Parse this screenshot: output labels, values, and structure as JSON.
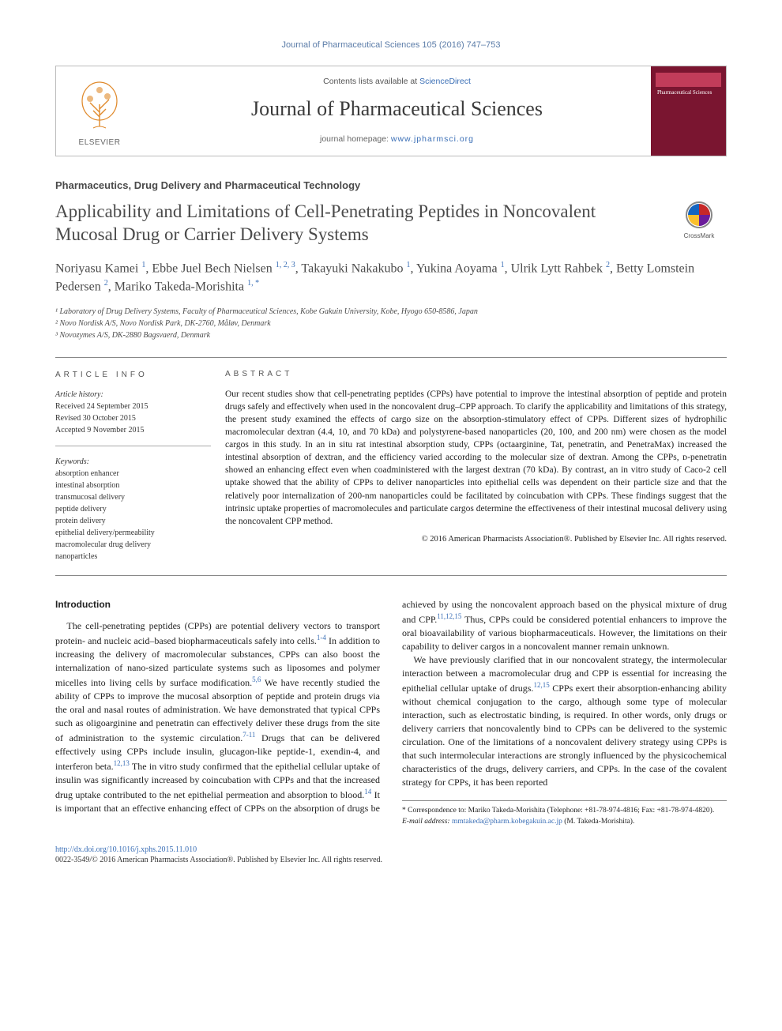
{
  "running_head": "Journal of Pharmaceutical Sciences 105 (2016) 747–753",
  "header": {
    "contents_prefix": "Contents lists available at ",
    "contents_link": "ScienceDirect",
    "journal_title": "Journal of Pharmaceutical Sciences",
    "homepage_prefix": "journal homepage: ",
    "homepage_url": "www.jpharmsci.org",
    "publisher_label": "ELSEVIER",
    "cover_text": "Pharmaceutical Sciences"
  },
  "section_label": "Pharmaceutics, Drug Delivery and Pharmaceutical Technology",
  "title": "Applicability and Limitations of Cell-Penetrating Peptides in Noncovalent Mucosal Drug or Carrier Delivery Systems",
  "crossmark_label": "CrossMark",
  "authors_html": "Noriyasu Kamei <span class='sup'>1</span>, Ebbe Juel Bech Nielsen <span class='sup'>1, 2, 3</span>, Takayuki Nakakubo <span class='sup'>1</span>, Yukina Aoyama <span class='sup'>1</span>, Ulrik Lytt Rahbek <span class='sup'>2</span>, Betty Lomstein Pedersen <span class='sup'>2</span>, Mariko Takeda-Morishita <span class='sup'>1, *</span>",
  "affiliations": {
    "a1": "¹ Laboratory of Drug Delivery Systems, Faculty of Pharmaceutical Sciences, Kobe Gakuin University, Kobe, Hyogo 650-8586, Japan",
    "a2": "² Novo Nordisk A/S, Novo Nordisk Park, DK-2760, Måløv, Denmark",
    "a3": "³ Novozymes A/S, DK-2880 Bagsvaerd, Denmark"
  },
  "info": {
    "head": "ARTICLE INFO",
    "history_label": "Article history:",
    "received": "Received 24 September 2015",
    "revised": "Revised 30 October 2015",
    "accepted": "Accepted 9 November 2015",
    "keywords_label": "Keywords:",
    "kw1": "absorption enhancer",
    "kw2": "intestinal absorption",
    "kw3": "transmucosal delivery",
    "kw4": "peptide delivery",
    "kw5": "protein delivery",
    "kw6": "epithelial delivery/permeability",
    "kw7": "macromolecular drug delivery",
    "kw8": "nanoparticles"
  },
  "abstract": {
    "head": "ABSTRACT",
    "text": "Our recent studies show that cell-penetrating peptides (CPPs) have potential to improve the intestinal absorption of peptide and protein drugs safely and effectively when used in the noncovalent drug–CPP approach. To clarify the applicability and limitations of this strategy, the present study examined the effects of cargo size on the absorption-stimulatory effect of CPPs. Different sizes of hydrophilic macromolecular dextran (4.4, 10, and 70 kDa) and polystyrene-based nanoparticles (20, 100, and 200 nm) were chosen as the model cargos in this study. In an in situ rat intestinal absorption study, CPPs (octaarginine, Tat, penetratin, and PenetraMax) increased the intestinal absorption of dextran, and the efficiency varied according to the molecular size of dextran. Among the CPPs, ᴅ-penetratin showed an enhancing effect even when coadministered with the largest dextran (70 kDa). By contrast, an in vitro study of Caco-2 cell uptake showed that the ability of CPPs to deliver nanoparticles into epithelial cells was dependent on their particle size and that the relatively poor internalization of 200-nm nanoparticles could be facilitated by coincubation with CPPs. These findings suggest that the intrinsic uptake properties of macromolecules and particulate cargos determine the effectiveness of their intestinal mucosal delivery using the noncovalent CPP method.",
    "copyright": "© 2016 American Pharmacists Association®. Published by Elsevier Inc. All rights reserved."
  },
  "body": {
    "intro_head": "Introduction",
    "c1p1a": "The cell-penetrating peptides (CPPs) are potential delivery vectors to transport protein- and nucleic acid–based biopharmaceuticals safely into cells.",
    "c1p1b": " In addition to increasing the delivery of macromolecular substances, CPPs can also boost the internalization of nano-sized particulate systems such as liposomes and polymer micelles into living cells by surface modification.",
    "c1p1c": " We have recently studied the ability of CPPs to improve the mucosal absorption of peptide and protein drugs via the oral and nasal routes of administration. We have demonstrated that typical CPPs such as oligoarginine and penetratin can effectively deliver these drugs from the site of administration to the systemic circulation.",
    "c1p1d": " Drugs that can be delivered effectively using CPPs include insulin, glucagon-like peptide-1, exendin-4, and interferon beta.",
    "c1p1e": " The in vitro study confirmed that the epithelial cellular uptake of insulin was",
    "c2p1a": "significantly increased by coincubation with CPPs and that the increased drug uptake contributed to the net epithelial permeation and absorption to blood.",
    "c2p1b": " It is important that an effective enhancing effect of CPPs on the absorption of drugs be achieved by using the noncovalent approach based on the physical mixture of drug and CPP.",
    "c2p1c": " Thus, CPPs could be considered potential enhancers to improve the oral bioavailability of various biopharmaceuticals. However, the limitations on their capability to deliver cargos in a noncovalent manner remain unknown.",
    "c2p2a": "We have previously clarified that in our noncovalent strategy, the intermolecular interaction between a macromolecular drug and CPP is essential for increasing the epithelial cellular uptake of drugs.",
    "c2p2b": " CPPs exert their absorption-enhancing ability without chemical conjugation to the cargo, although some type of molecular interaction, such as electrostatic binding, is required. In other words, only drugs or delivery carriers that noncovalently bind to CPPs can be delivered to the systemic circulation. One of the limitations of a noncovalent delivery strategy using CPPs is that such intermolecular interactions are strongly influenced by the physicochemical characteristics of the drugs, delivery carriers, and CPPs. In the case of the covalent strategy for CPPs, it has been reported",
    "ref_1_4": "1-4",
    "ref_5_6": "5,6",
    "ref_7_11": "7-11",
    "ref_12_13": "12,13",
    "ref_14": "14",
    "ref_11_12_15": "11,12,15",
    "ref_12_15": "12,15"
  },
  "footnote": {
    "corr": "* Correspondence to: Mariko Takeda-Morishita (Telephone: +81-78-974-4816; Fax: +81-78-974-4820).",
    "email_label": "E-mail address: ",
    "email": "mmtakeda@pharm.kobegakuin.ac.jp",
    "email_suffix": " (M. Takeda-Morishita)."
  },
  "footer": {
    "doi": "http://dx.doi.org/10.1016/j.xphs.2015.11.010",
    "issn_line": "0022-3549/© 2016 American Pharmacists Association®. Published by Elsevier Inc. All rights reserved."
  },
  "colors": {
    "link": "#3b6fb6",
    "text_gray": "#4a4a4a",
    "cover_bg": "#7a1530"
  }
}
